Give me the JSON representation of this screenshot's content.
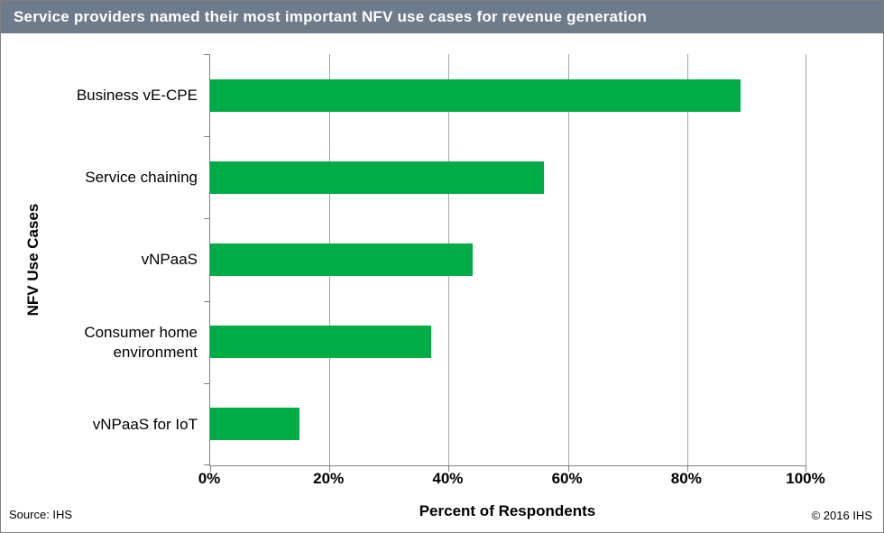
{
  "header": {
    "title": "Service providers named their most important NFV use cases for revenue generation"
  },
  "chart_data": {
    "type": "bar",
    "orientation": "horizontal",
    "title": "Service providers named their most important NFV use cases for revenue generation",
    "categories": [
      "Business vE-CPE",
      "Service chaining",
      "vNPaaS",
      "Consumer home environment",
      "vNPaaS for IoT"
    ],
    "values": [
      89,
      56,
      44,
      37,
      15
    ],
    "xlabel": "Percent of Respondents",
    "ylabel": "NFV Use Cases",
    "xlim": [
      0,
      100
    ],
    "x_tick_values": [
      0,
      20,
      40,
      60,
      80,
      100
    ],
    "x_tick_labels": [
      "0%",
      "20%",
      "40%",
      "60%",
      "80%",
      "100%"
    ],
    "grid": "vertical-only",
    "legend": "none",
    "bar_color": "#00AC46"
  },
  "colors": {
    "header_bg": "#6E7B8A",
    "header_text": "#FFFFFF",
    "bar_green": "#00AC46",
    "gridline": "#A6A6A6",
    "axis": "#808080"
  },
  "footer": {
    "source": "Source: IHS",
    "copyright": "© 2016 IHS"
  }
}
